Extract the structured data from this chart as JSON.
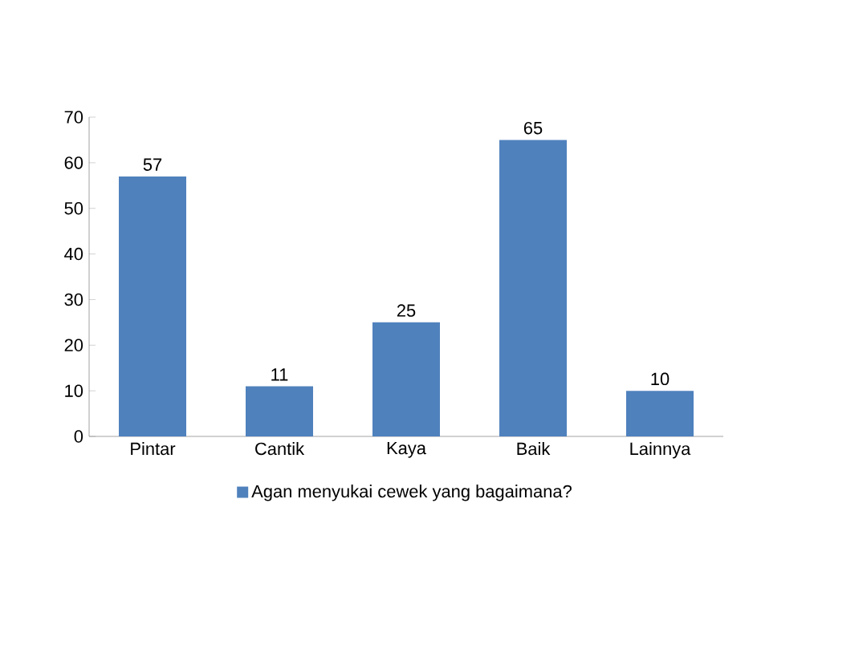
{
  "chart_data": {
    "type": "bar",
    "categories": [
      "Pintar",
      "Cantik",
      "Kaya",
      "Baik",
      "Lainnya"
    ],
    "series": [
      {
        "name": "Agan menyukai cewek yang bagaimana?",
        "color": "#4f81bd",
        "values": [
          57,
          11,
          25,
          65,
          10
        ]
      }
    ],
    "ylim": [
      0,
      70
    ],
    "yticks": [
      0,
      10,
      20,
      30,
      40,
      50,
      60,
      70
    ],
    "data_labels": true,
    "legend": "bottom",
    "grid": false
  }
}
